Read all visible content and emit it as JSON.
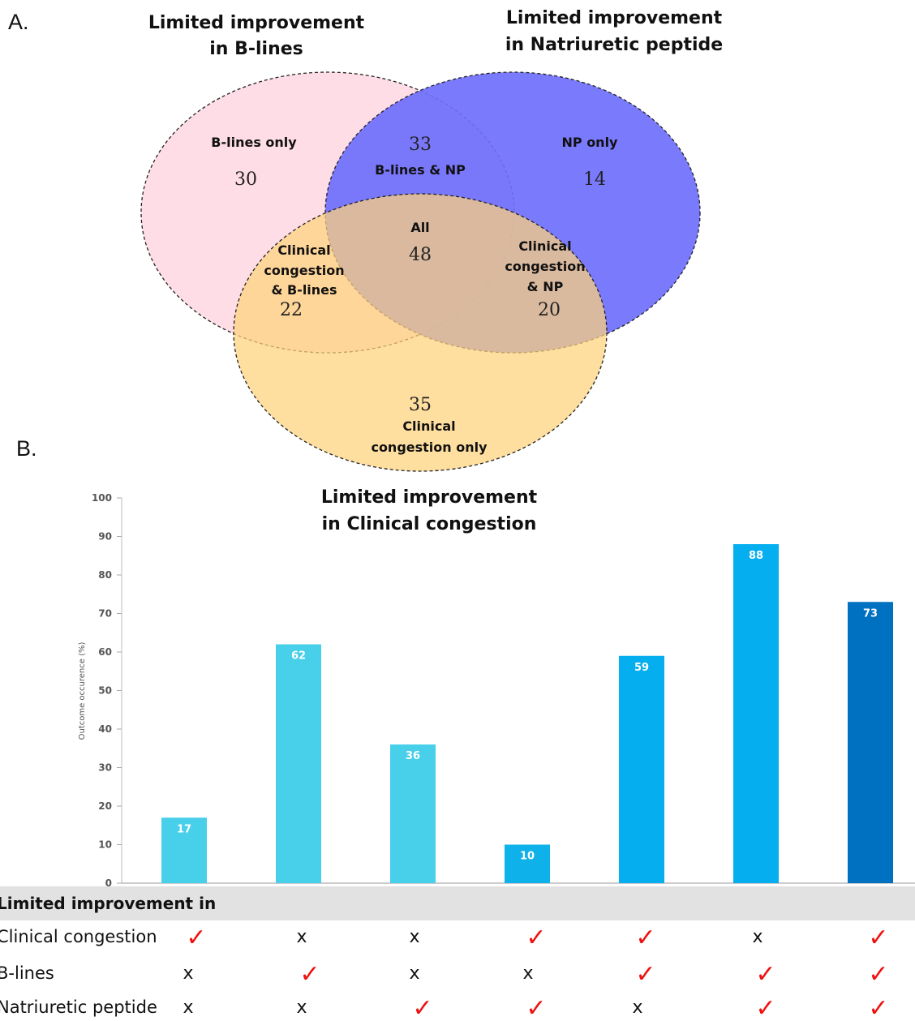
{
  "venn": {
    "panel_label": "A.",
    "title_b_lines": [
      "Limited improvement",
      "in B-lines"
    ],
    "title_np": [
      "Limited improvement",
      "in Natriuretic peptide"
    ],
    "title_clinical": [
      "Limited improvement",
      "in Clinical congestion"
    ],
    "regions": [
      {
        "id": "b_only",
        "label": [
          "B-lines only"
        ],
        "count": "30"
      },
      {
        "id": "b_np",
        "label": [
          "B-lines & NP"
        ],
        "count": "33"
      },
      {
        "id": "np_only",
        "label": [
          "NP only"
        ],
        "count": "14"
      },
      {
        "id": "all",
        "label": [
          "All"
        ],
        "count": "48"
      },
      {
        "id": "cc_b",
        "label": [
          "Clinical",
          "congestion",
          "& B-lines"
        ],
        "count": "22"
      },
      {
        "id": "cc_np",
        "label": [
          "Clinical",
          "congestion",
          "& NP"
        ],
        "count": "20"
      },
      {
        "id": "cc_only",
        "label": [
          "Clinical",
          "congestion only"
        ],
        "count": "35"
      }
    ],
    "colors": {
      "b_lines": "#ffdde6",
      "np": "#6f6ffc",
      "clinical": "#ffd27c"
    }
  },
  "chart_data": {
    "type": "bar",
    "panel_label": "B.",
    "ylabel": "Outcome occurence (%)",
    "ylim": [
      0,
      100
    ],
    "yticks": [
      0,
      10,
      20,
      30,
      40,
      50,
      60,
      70,
      80,
      90,
      100
    ],
    "values": [
      17,
      62,
      36,
      10,
      59,
      88,
      73
    ],
    "bar_colors": [
      "#48cfea",
      "#48cfea",
      "#48cfea",
      "#0eb1ea",
      "#05aeee",
      "#05aeee",
      "#0070c0"
    ],
    "grid": false
  },
  "table": {
    "header": "Limited improvement in",
    "rows": [
      {
        "label": "Clinical congestion",
        "marks": [
          true,
          false,
          false,
          true,
          true,
          false,
          true
        ]
      },
      {
        "label": "B-lines",
        "marks": [
          false,
          true,
          false,
          false,
          true,
          true,
          true
        ]
      },
      {
        "label": "Natriuretic peptide",
        "marks": [
          false,
          false,
          true,
          true,
          false,
          true,
          true
        ]
      }
    ],
    "yes_mark": "✓",
    "no_mark": "x",
    "check_color": "#ee1111"
  }
}
